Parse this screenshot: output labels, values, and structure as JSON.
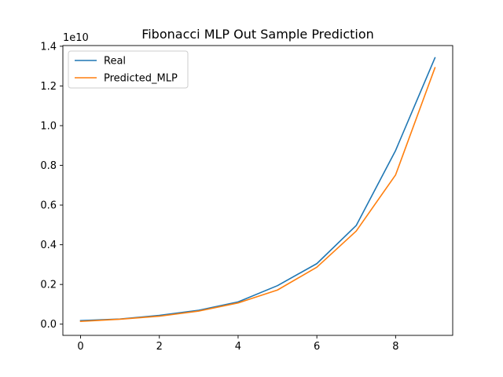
{
  "chart_data": {
    "type": "line",
    "title": "Fibonacci MLP Out Sample Prediction",
    "xlabel": "",
    "ylabel": "",
    "y_scale_label": "1e10",
    "xlim": [
      -0.45,
      9.45
    ],
    "ylim": [
      -0.0565,
      1.4035
    ],
    "xticks": [
      0,
      2,
      4,
      6,
      8
    ],
    "xtick_labels": [
      "0",
      "2",
      "4",
      "6",
      "8"
    ],
    "yticks": [
      0.0,
      0.2,
      0.4,
      0.6,
      0.8,
      1.0,
      1.2,
      1.4
    ],
    "ytick_labels": [
      "0.0",
      "0.2",
      "0.4",
      "0.6",
      "0.8",
      "1.0",
      "1.2",
      "1.4"
    ],
    "grid": false,
    "legend_position": "top-left",
    "x": [
      0,
      1,
      2,
      3,
      4,
      5,
      6,
      7,
      8,
      9
    ],
    "series": [
      {
        "name": "Real",
        "color": "#1f77b4",
        "values": [
          0.018,
          0.026,
          0.044,
          0.07,
          0.112,
          0.194,
          0.305,
          0.497,
          0.875,
          1.342
        ]
      },
      {
        "name": "Predicted_MLP",
        "color": "#ff7f0e",
        "values": [
          0.014,
          0.025,
          0.04,
          0.066,
          0.107,
          0.172,
          0.287,
          0.469,
          0.752,
          1.292
        ]
      }
    ]
  }
}
